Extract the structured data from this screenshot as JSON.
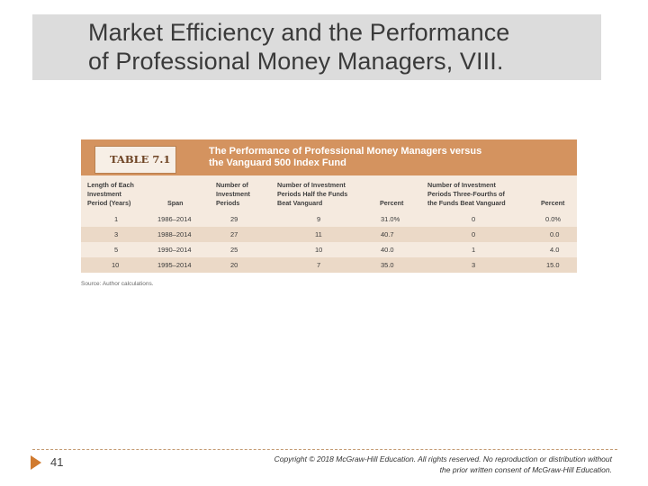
{
  "slide": {
    "title_line1": "Market Efficiency and the Performance",
    "title_line2": "of Professional Money Managers, VIII.",
    "page_number": "41",
    "copyright_line1": "Copyright © 2018 McGraw-Hill Education. All rights reserved. No reproduction or distribution without",
    "copyright_line2": "the prior written consent of McGraw-Hill Education."
  },
  "table": {
    "label": "TABLE 7.1",
    "caption_line1": "The Performance of Professional Money Managers versus",
    "caption_line2": "the Vanguard 500 Index Fund",
    "headers": {
      "length": [
        "Length of Each",
        "Investment",
        "Period (Years)"
      ],
      "span": [
        "Span"
      ],
      "num_periods": [
        "Number of",
        "Investment",
        "Periods"
      ],
      "half_beat": [
        "Number of Investment",
        "Periods Half the Funds",
        "Beat Vanguard"
      ],
      "percent1": [
        "Percent"
      ],
      "threefourths_beat": [
        "Number of Investment",
        "Periods Three-Fourths of",
        "the Funds Beat Vanguard"
      ],
      "percent2": [
        "Percent"
      ]
    },
    "rows": [
      {
        "length": "1",
        "span": "1986–2014",
        "periods": "29",
        "half": "9",
        "pct1": "31.0%",
        "threefourths": "0",
        "pct2": "0.0%"
      },
      {
        "length": "3",
        "span": "1988–2014",
        "periods": "27",
        "half": "11",
        "pct1": "40.7",
        "threefourths": "0",
        "pct2": "0.0"
      },
      {
        "length": "5",
        "span": "1990–2014",
        "periods": "25",
        "half": "10",
        "pct1": "40.0",
        "threefourths": "1",
        "pct2": "4.0"
      },
      {
        "length": "10",
        "span": "1995–2014",
        "periods": "20",
        "half": "7",
        "pct1": "35.0",
        "threefourths": "3",
        "pct2": "15.0"
      }
    ],
    "source": "Source: Author calculations."
  },
  "colors": {
    "title_band": "#dcdcdc",
    "table_header": "#d4935f",
    "table_body": "#f5eadf",
    "row_shade": "#ebd9c7",
    "accent_arrow": "#d07a2f"
  }
}
